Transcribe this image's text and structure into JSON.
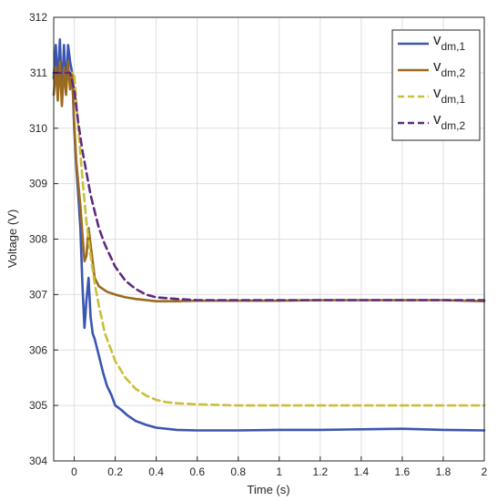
{
  "chart_data": {
    "type": "line",
    "xlabel": "Time (s)",
    "ylabel": "Voltage (V)",
    "xlim": [
      -0.1,
      2.0
    ],
    "ylim": [
      304,
      312
    ],
    "x_ticks": [
      "0",
      "0.2",
      "0.4",
      "0.6",
      "0.8",
      "1",
      "1.2",
      "1.4",
      "1.6",
      "1.8",
      "2"
    ],
    "x_tick_values": [
      0,
      0.2,
      0.4,
      0.6,
      0.8,
      1.0,
      1.2,
      1.4,
      1.6,
      1.8,
      2.0
    ],
    "y_ticks": [
      "304",
      "305",
      "306",
      "307",
      "308",
      "309",
      "310",
      "311",
      "312"
    ],
    "y_tick_values": [
      304,
      305,
      306,
      307,
      308,
      309,
      310,
      311,
      312
    ],
    "grid": true,
    "legend_position": "top-right",
    "series": [
      {
        "name": "v",
        "subscript": "dm,1",
        "color": "#3a56b0",
        "style": "solid",
        "x": [
          -0.1,
          -0.09,
          -0.08,
          -0.07,
          -0.06,
          -0.05,
          -0.04,
          -0.03,
          -0.02,
          -0.01,
          0.0,
          0.01,
          0.02,
          0.03,
          0.04,
          0.05,
          0.06,
          0.07,
          0.08,
          0.09,
          0.1,
          0.12,
          0.14,
          0.16,
          0.18,
          0.2,
          0.23,
          0.26,
          0.3,
          0.35,
          0.4,
          0.5,
          0.6,
          0.8,
          1.0,
          1.2,
          1.4,
          1.6,
          1.8,
          2.0
        ],
        "y": [
          310.9,
          311.5,
          310.8,
          311.6,
          310.6,
          311.5,
          310.7,
          311.5,
          311.2,
          311.0,
          310.0,
          309.3,
          308.8,
          308.2,
          307.2,
          306.4,
          306.9,
          307.3,
          306.6,
          306.3,
          306.2,
          305.9,
          305.6,
          305.35,
          305.2,
          305.0,
          304.92,
          304.82,
          304.72,
          304.65,
          304.6,
          304.56,
          304.55,
          304.55,
          304.56,
          304.56,
          304.57,
          304.58,
          304.56,
          304.55
        ]
      },
      {
        "name": "v",
        "subscript": "dm,2",
        "color": "#9c6a1e",
        "style": "solid",
        "x": [
          -0.1,
          -0.09,
          -0.08,
          -0.07,
          -0.06,
          -0.05,
          -0.04,
          -0.03,
          -0.02,
          -0.01,
          0.0,
          0.01,
          0.02,
          0.03,
          0.04,
          0.05,
          0.06,
          0.07,
          0.08,
          0.09,
          0.1,
          0.12,
          0.14,
          0.16,
          0.2,
          0.25,
          0.3,
          0.4,
          0.5,
          0.6,
          0.8,
          1.0,
          1.2,
          1.4,
          1.6,
          1.8,
          2.0
        ],
        "y": [
          310.6,
          311.1,
          310.5,
          311.2,
          310.4,
          311.1,
          310.6,
          311.2,
          310.7,
          311.0,
          310.1,
          309.4,
          309.0,
          308.6,
          308.1,
          307.6,
          307.7,
          308.2,
          307.9,
          307.6,
          307.3,
          307.15,
          307.1,
          307.05,
          307.0,
          306.95,
          306.92,
          306.88,
          306.88,
          306.89,
          306.89,
          306.89,
          306.9,
          306.9,
          306.9,
          306.9,
          306.88
        ]
      },
      {
        "name": "v",
        "subscript": "dm,1",
        "color": "#c9bf3a",
        "style": "dashed",
        "x": [
          -0.1,
          0.0,
          0.02,
          0.04,
          0.06,
          0.08,
          0.1,
          0.12,
          0.15,
          0.2,
          0.25,
          0.3,
          0.35,
          0.4,
          0.45,
          0.5,
          0.6,
          0.8,
          1.0,
          1.5,
          2.0
        ],
        "y": [
          311.0,
          311.0,
          310.0,
          309.1,
          308.3,
          307.7,
          307.2,
          306.8,
          306.3,
          305.8,
          305.5,
          305.3,
          305.18,
          305.1,
          305.06,
          305.04,
          305.02,
          305.0,
          305.0,
          305.0,
          305.0
        ]
      },
      {
        "name": "v",
        "subscript": "dm,2",
        "color": "#5e2a80",
        "style": "dashed",
        "x": [
          -0.1,
          -0.02,
          0.0,
          0.02,
          0.04,
          0.06,
          0.08,
          0.1,
          0.12,
          0.15,
          0.2,
          0.25,
          0.3,
          0.35,
          0.4,
          0.5,
          0.6,
          0.8,
          1.0,
          1.5,
          2.0
        ],
        "y": [
          311.0,
          311.0,
          310.7,
          310.1,
          309.6,
          309.2,
          308.8,
          308.5,
          308.2,
          307.9,
          307.5,
          307.25,
          307.1,
          307.0,
          306.95,
          306.92,
          306.9,
          306.9,
          306.9,
          306.9,
          306.9
        ]
      }
    ]
  }
}
